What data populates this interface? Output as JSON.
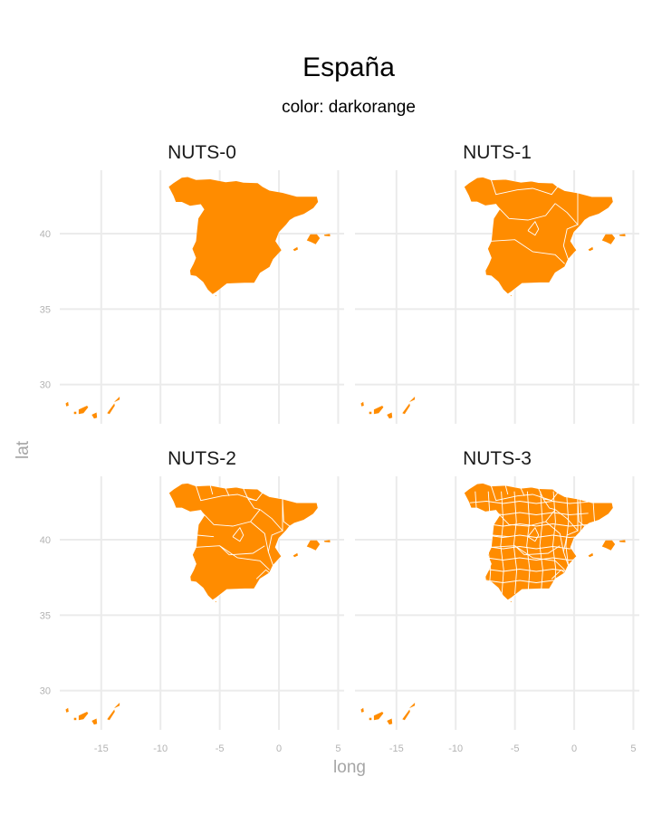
{
  "title": "España",
  "subtitle": "color: darkorange",
  "fill_color": "#FF8C00",
  "border_color": "#ffffff",
  "axis": {
    "xlabel": "long",
    "ylabel": "lat"
  },
  "chart_data": {
    "type": "map",
    "title": "España",
    "subtitle": "color: darkorange",
    "xlabel": "long",
    "ylabel": "lat",
    "x_ticks": [
      -15,
      -10,
      -5,
      0,
      5
    ],
    "y_ticks": [
      30,
      35,
      40
    ],
    "xlim": [
      -18.5,
      5.5
    ],
    "ylim": [
      27.4,
      44.2
    ],
    "grid": true,
    "panels": [
      {
        "title": "NUTS-0",
        "regions": 1
      },
      {
        "title": "NUTS-1",
        "regions": 7
      },
      {
        "title": "NUTS-2",
        "regions": 19
      },
      {
        "title": "NUTS-3",
        "regions": 59
      }
    ]
  }
}
